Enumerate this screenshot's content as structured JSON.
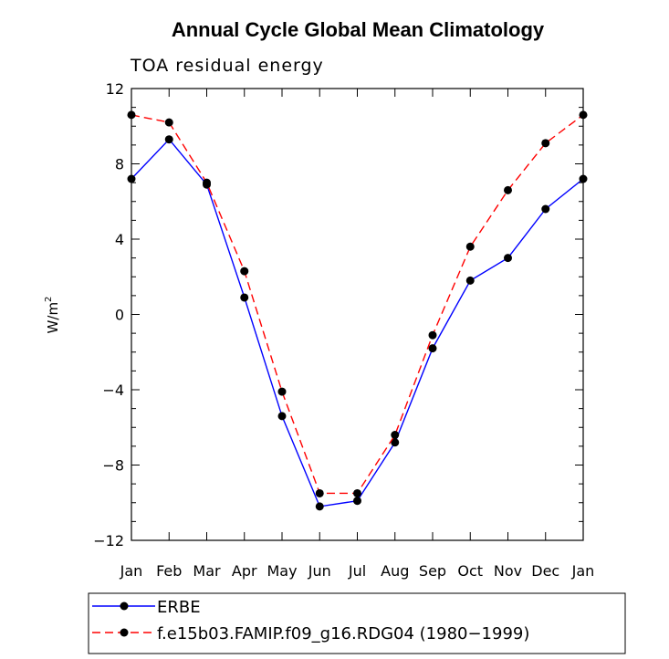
{
  "chart_data": {
    "type": "line",
    "title": "Annual Cycle Global Mean Climatology",
    "subtitle": "TOA residual energy",
    "xlabel": "",
    "ylabel": "W/m",
    "ylabel_superscript": "2",
    "categories": [
      "Jan",
      "Feb",
      "Mar",
      "Apr",
      "May",
      "Jun",
      "Jul",
      "Aug",
      "Sep",
      "Oct",
      "Nov",
      "Dec",
      "Jan"
    ],
    "ylim": [
      -12,
      12
    ],
    "yticks": [
      12,
      8,
      4,
      0,
      -4,
      -8,
      -12
    ],
    "ytick_labels": [
      "12",
      "8",
      "4",
      "0",
      "−4",
      "−8",
      "−12"
    ],
    "grid": false,
    "legend_position": "bottom",
    "series": [
      {
        "name": "ERBE",
        "color": "#0000ff",
        "dash": "solid",
        "marker": "filled-circle",
        "values": [
          7.2,
          9.3,
          6.9,
          0.9,
          -5.4,
          -10.2,
          -9.9,
          -6.8,
          -1.8,
          1.8,
          3.0,
          5.6,
          7.2
        ]
      },
      {
        "name": "f.e15b03.FAMIP.f09_g16.RDG04 (1980−1999)",
        "color": "#ff0000",
        "dash": "dashed",
        "marker": "filled-circle",
        "values": [
          10.6,
          10.2,
          7.0,
          2.3,
          -4.1,
          -9.5,
          -9.5,
          -6.4,
          -1.1,
          3.6,
          6.6,
          9.1,
          10.6
        ]
      }
    ]
  }
}
